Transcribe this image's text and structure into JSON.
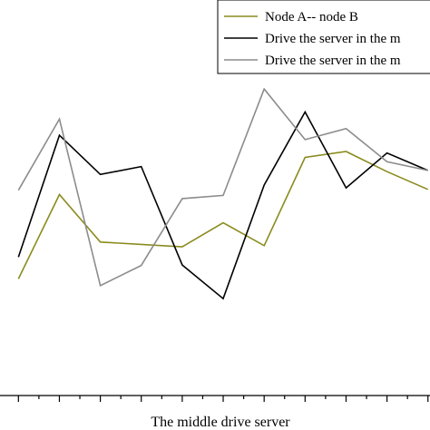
{
  "chart_data": {
    "type": "line",
    "title": "",
    "xlabel": "The middle drive server",
    "ylabel": "",
    "x": [
      1,
      2,
      3,
      4,
      5,
      6,
      7,
      8,
      9,
      10,
      11
    ],
    "xlim": [
      0.55,
      11.05
    ],
    "ylim": [
      0,
      100
    ],
    "grid": false,
    "legend": "top-right",
    "series": [
      {
        "name": "Node A-- node B",
        "color": "#8b8b1e",
        "values": [
          29.5,
          50.8,
          38.8,
          38.2,
          37.6,
          43.7,
          37.9,
          60.2,
          61.7,
          56.6,
          52.1
        ]
      },
      {
        "name": "Drive the server in the m",
        "color": "#000000",
        "values": [
          35.0,
          65.8,
          55.9,
          57.9,
          33.0,
          24.5,
          53.2,
          71.7,
          52.5,
          61.3,
          56.9
        ]
      },
      {
        "name": "Drive the server in the m",
        "color": "#8c8c8c",
        "values": [
          51.9,
          69.9,
          27.8,
          32.9,
          49.8,
          50.6,
          77.5,
          64.7,
          67.5,
          59.1,
          56.9
        ]
      }
    ]
  }
}
